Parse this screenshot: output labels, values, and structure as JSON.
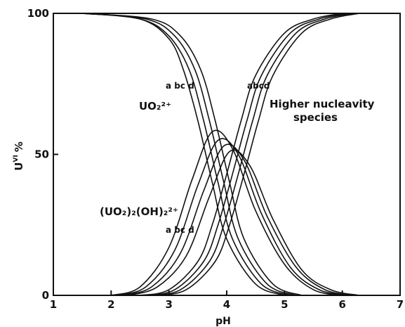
{
  "chart_data": {
    "type": "line",
    "title": "",
    "xlabel": "pH",
    "ylabel": "U",
    "ylabel_sup": "VI",
    "ylabel_unit": "%",
    "xlim": [
      1,
      7
    ],
    "ylim": [
      0,
      100
    ],
    "xticks": [
      "1",
      "2",
      "3",
      "4",
      "5",
      "6",
      "7"
    ],
    "yticks": [
      "0",
      "50",
      "100"
    ],
    "grid": false,
    "curve_letters": [
      "a",
      "b",
      "c",
      "d"
    ],
    "species": [
      {
        "label": "UO₂²⁺",
        "letters_text": "a bc d",
        "curves": [
          {
            "curve": "a",
            "x": [
              1.5,
              2.5,
              3.0,
              3.25,
              3.5,
              3.75,
              4.0,
              4.5,
              5.0
            ],
            "y": [
              100,
              98,
              91,
              80,
              62,
              40,
              20,
              4,
              0
            ]
          },
          {
            "curve": "b",
            "x": [
              1.5,
              2.5,
              3.0,
              3.35,
              3.6,
              3.85,
              4.1,
              4.6,
              5.1
            ],
            "y": [
              100,
              98,
              92,
              80,
              62,
              40,
              20,
              4,
              0
            ]
          },
          {
            "curve": "c",
            "x": [
              1.5,
              2.6,
              3.1,
              3.45,
              3.7,
              3.95,
              4.2,
              4.7,
              5.2
            ],
            "y": [
              100,
              98,
              92,
              80,
              62,
              40,
              20,
              4,
              0
            ]
          },
          {
            "curve": "d",
            "x": [
              1.5,
              2.7,
              3.2,
              3.55,
              3.8,
              4.05,
              4.3,
              4.8,
              5.3
            ],
            "y": [
              100,
              98,
              92,
              80,
              62,
              40,
              20,
              4,
              0
            ]
          }
        ]
      },
      {
        "label": "(UO₂)₂(OH)₂²⁺",
        "letters_text": "a bc d",
        "curves": [
          {
            "curve": "a",
            "x": [
              2.0,
              2.5,
              3.0,
              3.4,
              3.75,
              4.1,
              4.5,
              5.0,
              5.5,
              6.0
            ],
            "y": [
              0,
              3,
              17,
              41,
              58,
              52,
              30,
              11,
              2,
              0
            ]
          },
          {
            "curve": "b",
            "x": [
              2.1,
              2.6,
              3.1,
              3.5,
              3.85,
              4.2,
              4.6,
              5.1,
              5.6,
              6.1
            ],
            "y": [
              0,
              3,
              16,
              39,
              55,
              50,
              29,
              10,
              2,
              0
            ]
          },
          {
            "curve": "c",
            "x": [
              2.2,
              2.7,
              3.2,
              3.6,
              3.95,
              4.3,
              4.7,
              5.2,
              5.7,
              6.2
            ],
            "y": [
              0,
              3,
              15,
              37,
              53,
              48,
              28,
              10,
              2,
              0
            ]
          },
          {
            "curve": "d",
            "x": [
              2.3,
              2.8,
              3.3,
              3.7,
              4.05,
              4.4,
              4.8,
              5.3,
              5.8,
              6.3
            ],
            "y": [
              0,
              3,
              14,
              35,
              51,
              46,
              27,
              9,
              2,
              0
            ]
          }
        ]
      },
      {
        "label_line1": "Higher nucleavity",
        "label_line2": "species",
        "letters_text": "abcd",
        "curves": [
          {
            "curve": "a",
            "x": [
              2.5,
              3.0,
              3.5,
              3.75,
              4.0,
              4.25,
              4.5,
              5.0,
              5.5,
              6.0
            ],
            "y": [
              0,
              2,
              12,
              25,
              43,
              62,
              78,
              93,
              98,
              100
            ]
          },
          {
            "curve": "b",
            "x": [
              2.6,
              3.1,
              3.6,
              3.85,
              4.1,
              4.35,
              4.6,
              5.1,
              5.6,
              6.1
            ],
            "y": [
              0,
              2,
              12,
              25,
              43,
              62,
              78,
              93,
              98,
              100
            ]
          },
          {
            "curve": "c",
            "x": [
              2.7,
              3.2,
              3.7,
              3.95,
              4.2,
              4.45,
              4.7,
              5.2,
              5.7,
              6.2
            ],
            "y": [
              0,
              2,
              12,
              25,
              43,
              62,
              78,
              93,
              98,
              100
            ]
          },
          {
            "curve": "d",
            "x": [
              2.8,
              3.3,
              3.8,
              4.05,
              4.3,
              4.55,
              4.8,
              5.3,
              5.8,
              6.3
            ],
            "y": [
              0,
              2,
              12,
              25,
              43,
              62,
              78,
              93,
              98,
              100
            ]
          }
        ]
      }
    ]
  }
}
